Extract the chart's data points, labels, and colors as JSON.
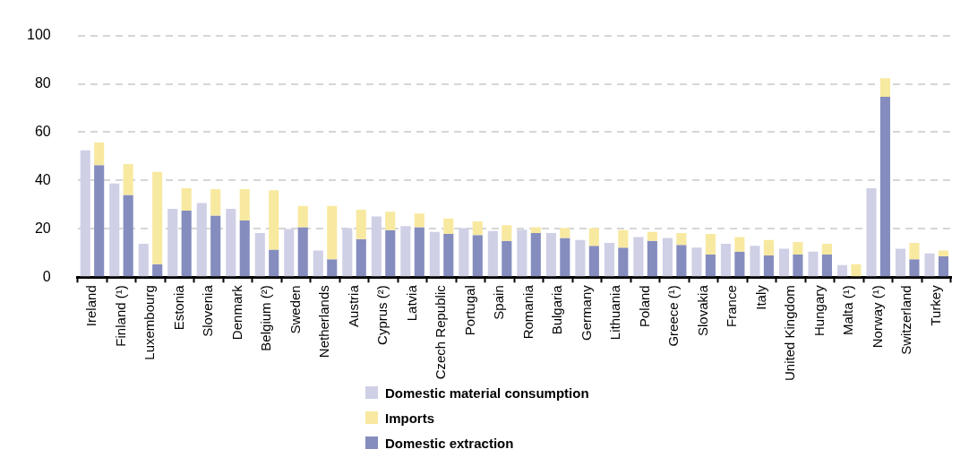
{
  "chart_data": {
    "type": "bar",
    "categories": [
      "Ireland",
      "Finland (¹)",
      "Luxembourg",
      "Estonia",
      "Slovenia",
      "Denmark",
      "Belgium (²)",
      "Sweden",
      "Netherlands",
      "Austria",
      "Cyprus (²)",
      "Latvia",
      "Czech Republic",
      "Portugal",
      "Spain",
      "Romania",
      "Bulgaria",
      "Germany",
      "Lithuania",
      "Poland",
      "Greece (¹)",
      "Slovakia",
      "France",
      "Italy",
      "United Kingdom",
      "Hungary",
      "Malta (¹)",
      "Norway (¹)",
      "Switzerland",
      "Turkey"
    ],
    "series": [
      {
        "name": "Domestic material consumption",
        "color": "#cfd0e6",
        "values": [
          52.5,
          38.8,
          13.8,
          28.3,
          30.7,
          28.3,
          18.3,
          19.9,
          11,
          20.3,
          25.1,
          21.1,
          18.7,
          20.3,
          19.1,
          19.7,
          18.3,
          15.4,
          14.2,
          16.6,
          16.2,
          12.2,
          13.8,
          13,
          11.8,
          10.6,
          5,
          36.8,
          11.8,
          9.8
        ]
      },
      {
        "name": "Imports",
        "color": "#f8e9a0",
        "base": [
          46.4,
          34,
          5.4,
          27.5,
          25.5,
          23.5,
          11.4,
          20.7,
          7.4,
          15.8,
          19.5,
          20.7,
          17.9,
          17.4,
          15,
          18.3,
          16.2,
          13,
          12.2,
          15,
          13.4,
          9.4,
          10.6,
          9,
          9.4,
          9.4,
          0,
          74.6,
          7.4,
          8.6
        ],
        "values": [
          9.3,
          12.8,
          38.2,
          9.3,
          10.9,
          12.9,
          24.6,
          8.8,
          22.1,
          12.1,
          7.6,
          5.6,
          6.4,
          5.7,
          6.5,
          2.4,
          4.1,
          7.3,
          7.3,
          3.7,
          4.9,
          8.5,
          6,
          6.4,
          5.2,
          4.4,
          5.4,
          7.7,
          6.8,
          2.4
        ]
      },
      {
        "name": "Domestic extraction",
        "color": "#858dbf",
        "values": [
          46.4,
          34,
          5.4,
          27.5,
          25.5,
          23.5,
          11.4,
          20.7,
          7.4,
          15.8,
          19.5,
          20.7,
          17.9,
          17.4,
          15,
          18.3,
          16.2,
          13,
          12.2,
          15,
          13.4,
          9.4,
          10.6,
          9,
          9.4,
          9.4,
          0,
          74.6,
          7.4,
          8.6
        ]
      }
    ],
    "ylim": [
      0,
      100
    ],
    "yticks": [
      0,
      20,
      40,
      60,
      80,
      100
    ],
    "grid": "y",
    "legend": "bottom"
  }
}
